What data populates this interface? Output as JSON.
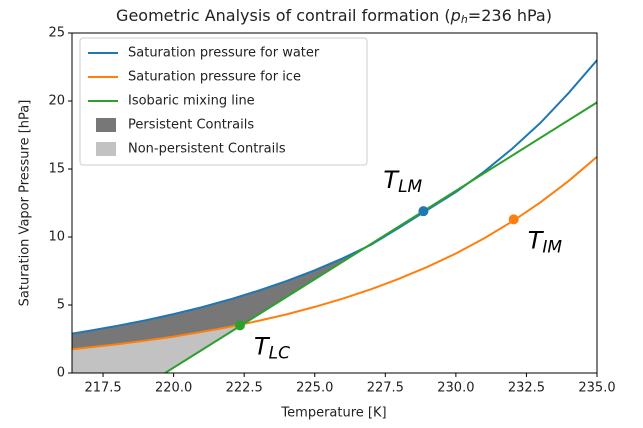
{
  "chart_data": {
    "type": "line",
    "title": {
      "before": "Geometric Analysis of contrail formation (",
      "var": "p",
      "sub": "h",
      "after": "=236 hPa)"
    },
    "x_label": "Temperature [K]",
    "y_label": "Saturation Vapor Pressure [hPa]",
    "x": [
      216.4,
      217,
      218,
      219,
      220,
      221,
      222,
      223,
      224,
      225,
      226,
      227,
      228,
      229,
      230,
      231,
      232,
      233,
      234,
      235
    ],
    "series": [
      {
        "name": "Saturation pressure for water",
        "color": "#1f77b4",
        "values": [
          2.9,
          3.1,
          3.47,
          3.87,
          4.33,
          4.84,
          5.41,
          6.05,
          6.76,
          7.55,
          8.44,
          9.44,
          10.7,
          12.0,
          13.3,
          14.8,
          16.5,
          18.4,
          20.6,
          23.0
        ]
      },
      {
        "name": "Saturation pressure for ice",
        "color": "#ff7f0e",
        "values": [
          1.75,
          1.88,
          2.12,
          2.38,
          2.68,
          3.02,
          3.4,
          3.83,
          4.31,
          4.86,
          5.47,
          6.16,
          6.94,
          7.81,
          8.79,
          9.9,
          11.15,
          12.55,
          14.13,
          15.9
        ]
      },
      {
        "name": "Isobaric mixing line",
        "color": "#2ca02c",
        "x": [
          219.7,
          235
        ],
        "values": [
          0,
          19.9
        ]
      }
    ],
    "regions": [
      {
        "name": "Persistent Contrails",
        "color": "#777777"
      },
      {
        "name": "Non-persistent Contrails",
        "color": "#c2c2c2"
      }
    ],
    "points": [
      {
        "label": {
          "base": "T",
          "sub": "LM"
        },
        "x": 228.85,
        "y": 11.9,
        "color": "#1f77b4"
      },
      {
        "label": {
          "base": "T",
          "sub": "IM"
        },
        "x": 232.05,
        "y": 11.3,
        "color": "#ff7f0e"
      },
      {
        "label": {
          "base": "T",
          "sub": "LC"
        },
        "x": 222.35,
        "y": 3.5,
        "color": "#2ca02c"
      }
    ],
    "xlim": [
      216.4,
      235
    ],
    "ylim": [
      0,
      25
    ],
    "xticks": [
      217.5,
      {
        "value": 220,
        "label": "220.0"
      },
      222.5,
      {
        "value": 225,
        "label": "225.0"
      },
      227.5,
      {
        "value": 230,
        "label": "230.0"
      },
      232.5,
      {
        "value": 235,
        "label": "235.0"
      }
    ],
    "yticks": [
      0,
      5,
      10,
      15,
      20,
      25
    ],
    "legend": "upper left"
  }
}
